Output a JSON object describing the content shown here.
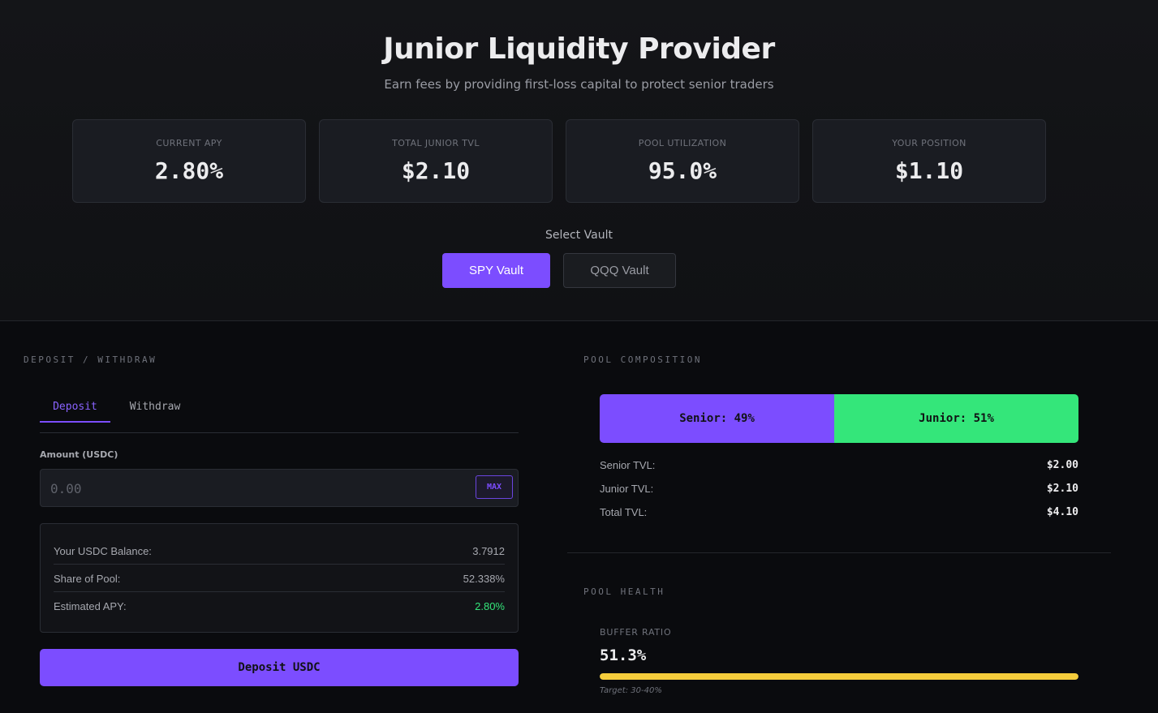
{
  "header": {
    "title": "Junior Liquidity Provider",
    "subtitle": "Earn fees by providing first-loss capital to protect senior traders"
  },
  "stats": [
    {
      "label": "CURRENT APY",
      "value": "2.80%"
    },
    {
      "label": "TOTAL JUNIOR TVL",
      "value": "$2.10"
    },
    {
      "label": "POOL UTILIZATION",
      "value": "95.0%"
    },
    {
      "label": "YOUR POSITION",
      "value": "$1.10"
    }
  ],
  "vault_select": {
    "label": "Select Vault",
    "options": [
      "SPY Vault",
      "QQQ Vault"
    ],
    "selected": "SPY Vault"
  },
  "deposit_panel": {
    "section_label": "DEPOSIT / WITHDRAW",
    "tabs": [
      "Deposit",
      "Withdraw"
    ],
    "active_tab": "Deposit",
    "amount_label": "Amount (USDC)",
    "amount_placeholder": "0.00",
    "amount_value": "",
    "max_label": "MAX",
    "info": [
      {
        "label": "Your USDC Balance:",
        "value": "3.7912"
      },
      {
        "label": "Share of Pool:",
        "value": "52.338%"
      },
      {
        "label": "Estimated APY:",
        "value": "2.80%"
      }
    ],
    "submit_label": "Deposit USDC"
  },
  "pool_composition": {
    "section_label": "POOL COMPOSITION",
    "senior_label": "Senior: 49%",
    "junior_label": "Junior: 51%",
    "senior_pct": 49,
    "junior_pct": 51,
    "tvl_rows": [
      {
        "label": "Senior TVL:",
        "value": "$2.00"
      },
      {
        "label": "Junior TVL:",
        "value": "$2.10"
      },
      {
        "label": "Total TVL:",
        "value": "$4.10"
      }
    ]
  },
  "pool_health": {
    "section_label": "POOL HEALTH",
    "buffer_label": "BUFFER RATIO",
    "buffer_value": "51.3%",
    "buffer_fill_pct": 100,
    "target": "Target: 30-40%"
  },
  "colors": {
    "accent": "#7c4dff",
    "junior": "#34e67a",
    "positive": "#34e67a",
    "warning": "#f5cd3c"
  }
}
